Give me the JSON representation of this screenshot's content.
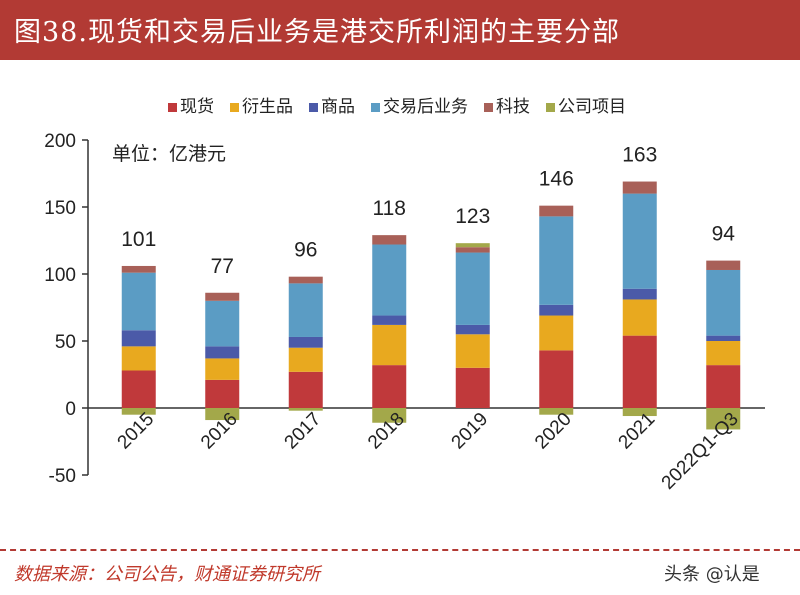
{
  "title": "图38.现货和交易后业务是港交所利润的主要分部",
  "source": "数据来源：公司公告，财通证券研究所",
  "watermark": "头条 @认是",
  "colors": {
    "现货": "#c0393b",
    "衍生品": "#e8a91f",
    "商品": "#4b5aa8",
    "交易后业务": "#5b9cc4",
    "科技": "#a86058",
    "公司项目": "#a3a84a"
  },
  "chart_data": {
    "type": "bar",
    "stacked": true,
    "unit_label": "单位：亿港元",
    "categories": [
      "2015",
      "2016",
      "2017",
      "2018",
      "2019",
      "2020",
      "2021",
      "2022Q1-Q3"
    ],
    "series": [
      {
        "name": "现货",
        "values": [
          28,
          21,
          27,
          32,
          30,
          43,
          54,
          32
        ]
      },
      {
        "name": "衍生品",
        "values": [
          18,
          16,
          18,
          30,
          25,
          26,
          27,
          18
        ]
      },
      {
        "name": "商品",
        "values": [
          12,
          9,
          8,
          7,
          7,
          8,
          8,
          4
        ]
      },
      {
        "name": "交易后业务",
        "values": [
          43,
          34,
          40,
          53,
          54,
          66,
          71,
          49
        ]
      },
      {
        "name": "科技",
        "values": [
          5,
          6,
          5,
          7,
          4,
          8,
          9,
          7
        ]
      },
      {
        "name": "公司项目",
        "values": [
          -5,
          -9,
          -2,
          -11,
          3,
          -5,
          -6,
          -16
        ]
      }
    ],
    "totals": [
      "101",
      "77",
      "96",
      "118",
      "123",
      "146",
      "163",
      "94"
    ],
    "yticks": [
      "200",
      "150",
      "100",
      "50",
      "0",
      "-50"
    ],
    "ylim": [
      -50,
      200
    ],
    "legend_position": "top",
    "grid": false
  }
}
